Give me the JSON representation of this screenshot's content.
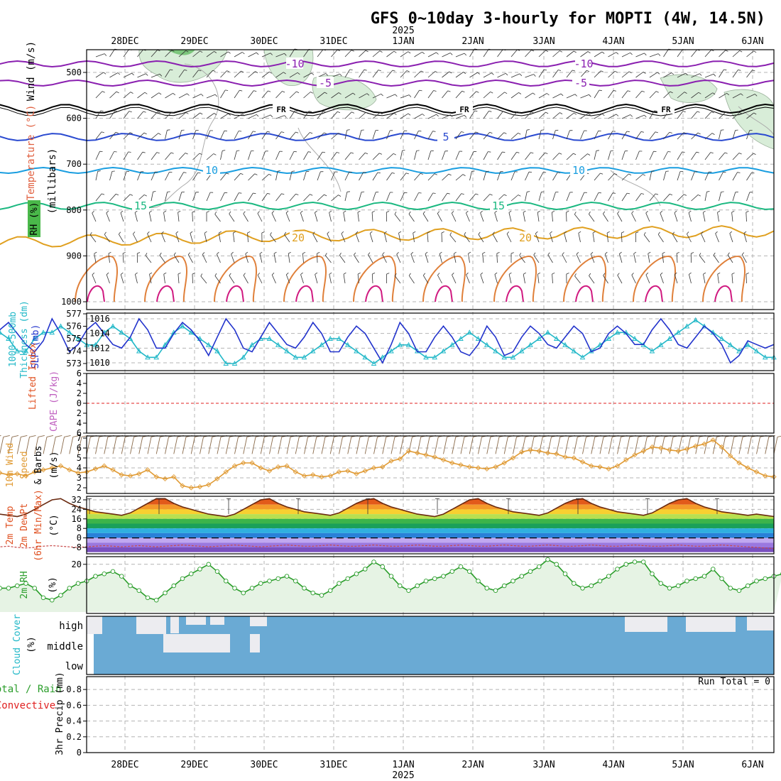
{
  "title": "GFS 0~10day 3-hourly for MOPTI (4W, 14.5N)",
  "year_label": "2025",
  "dates": [
    "28DEC",
    "29DEC",
    "30DEC",
    "31DEC",
    "1JAN",
    "2JAN",
    "3JAN",
    "4JAN",
    "5JAN",
    "6JAN"
  ],
  "panel_labels": {
    "upper_wind": "Wind (m/s)",
    "upper_temp": "Temperature (°C)",
    "upper_rh": "RH (%)",
    "upper_units": "(millibars)",
    "thick_a": "1000-500mb",
    "thick_b": "Thickness (dm)",
    "slp": "SLP (mb)",
    "li": "Lifted Index",
    "cape": "CAPE (J/kg)",
    "wind10_a": "10m Wind",
    "wind10_b": "Speed",
    "wind10_c": "& Barbs",
    "wind10_units": "(m/s)",
    "temp_a": "2m Temp",
    "temp_b": "2m DewPt",
    "temp_c": "(6hr Min/Max)",
    "temp_units": "(°C)",
    "rh2m": "2m RH",
    "rh2m_units": "(%)",
    "cloud": "Cloud Cover",
    "cloud_units": "(%)",
    "precip_a": "Total / Rain",
    "precip_b": "Convective",
    "precip_units": "3hr Precip (mm)",
    "cloud_levels": [
      "high",
      "middle",
      "low"
    ],
    "run_total": "Run Total = 0"
  },
  "colors": {
    "slp": "#2233cc",
    "thickness": "#22b8c8",
    "wind10": "#e09a33",
    "rh2m": "#2a9d2a",
    "cloud": "#6aaad4",
    "li": "#e02020",
    "temp_m10": "#8a1fb0",
    "temp_m5": "#8a1fb0",
    "temp_fr": "#000000",
    "temp_5": "#2a4ad0",
    "temp_10": "#1a9ee0",
    "temp_15": "#1ab880",
    "temp_20": "#e0a020"
  },
  "chart_data": [
    {
      "type": "line",
      "panel": "upper_air_temperature",
      "y_axis": "pressure (mb)",
      "yticks": [
        500,
        600,
        700,
        800,
        900,
        1000
      ],
      "isotherm_labels": [
        "-10",
        "-5",
        "FR",
        "5",
        "10",
        "15",
        "20"
      ]
    },
    {
      "type": "line",
      "panel": "slp_thickness",
      "yticks_thickness": [
        573,
        574,
        575,
        576,
        577
      ],
      "yticks_slp": [
        1010,
        1012,
        1014,
        1016
      ],
      "series": [
        {
          "name": "SLP (mb)",
          "values": [
            1014.5,
            1013.5,
            1012.0,
            1012.5,
            1014.5,
            1015.5,
            1014.0,
            1012.5,
            1011.5,
            1013.0,
            1016.0,
            1014.0,
            1011.5,
            1012.5,
            1014.5,
            1015.5,
            1014.0,
            1012.5,
            1012.0,
            1013.5,
            1016.0,
            1014.5,
            1012.0,
            1012.0,
            1014.0,
            1015.5,
            1014.5,
            1013.0,
            1011.0,
            1013.5,
            1016.0,
            1014.5,
            1012.0,
            1011.5,
            1013.5,
            1015.5,
            1014.0,
            1012.5,
            1012.0,
            1013.5,
            1015.5,
            1014.0,
            1011.5,
            1011.5,
            1013.5,
            1015.0,
            1014.0,
            1012.0,
            1010.0,
            1012.5,
            1015.5,
            1014.0,
            1011.5,
            1011.5,
            1013.5,
            1015.0,
            1013.5,
            1011.5,
            1011.0,
            1012.5,
            1015.0,
            1013.5,
            1011.0,
            1011.5,
            1013.5,
            1015.0,
            1014.0,
            1012.5,
            1012.0,
            1013.5,
            1015.0,
            1014.0,
            1011.5,
            1012.0,
            1014.0,
            1015.0,
            1014.0,
            1012.5,
            1012.5,
            1014.5,
            1016.0,
            1014.5,
            1012.5,
            1012.0,
            1013.5,
            1015.0,
            1014.0,
            1012.5,
            1010.0,
            1011.0,
            1013.0,
            1012.5,
            1012.0,
            1012.5
          ]
        },
        {
          "name": "1000-500mb Thickness (dm)",
          "values": [
            575.5,
            576.5,
            576.5,
            576.0,
            575.5,
            575.0,
            574.0,
            574.0,
            575.0,
            575.5,
            575.5,
            576.0,
            575.5,
            575.0,
            574.5,
            574.5,
            575.5,
            576.0,
            575.5,
            575.0,
            574.0,
            573.5,
            573.5,
            574.5,
            575.5,
            576.0,
            575.5,
            575.0,
            574.5,
            574.0,
            573.0,
            573.0,
            573.5,
            574.5,
            575.0,
            575.0,
            574.5,
            574.0,
            573.5,
            573.5,
            574.0,
            574.5,
            575.0,
            575.0,
            574.5,
            574.0,
            573.5,
            573.0,
            573.5,
            574.0,
            574.5,
            574.5,
            574.0,
            573.5,
            573.5,
            574.0,
            574.5,
            575.0,
            575.5,
            575.0,
            574.5,
            574.0,
            573.5,
            573.5,
            574.0,
            574.5,
            575.0,
            575.5,
            575.0,
            574.5,
            574.0,
            573.5,
            574.0,
            574.5,
            575.0,
            575.5,
            575.5,
            575.0,
            574.5,
            574.0,
            574.5,
            575.0,
            575.5,
            576.0,
            576.5,
            576.0,
            575.5,
            575.0,
            574.5,
            574.0,
            574.5,
            574.0,
            573.5,
            573.5
          ]
        }
      ]
    },
    {
      "type": "line",
      "panel": "lifted_index_cape",
      "yticks": [
        "6",
        "4",
        "2",
        "0",
        "2",
        "4",
        "6"
      ],
      "li_line_value": 0
    },
    {
      "type": "line",
      "panel": "10m_wind",
      "yticks": [
        2,
        3,
        4,
        5,
        6,
        7
      ],
      "series": [
        {
          "name": "10m Wind Speed (m/s)",
          "values": [
            3.8,
            4.3,
            4.5,
            4.3,
            3.5,
            3.3,
            3.4,
            3.2,
            3.6,
            3.8,
            4.0,
            4.2,
            3.8,
            3.5,
            3.6,
            3.9,
            4.2,
            3.8,
            3.3,
            3.2,
            3.4,
            3.8,
            3.1,
            2.9,
            3.1,
            2.2,
            2.0,
            2.1,
            2.3,
            2.9,
            3.6,
            4.2,
            4.5,
            4.5,
            4.0,
            3.7,
            4.1,
            4.2,
            3.6,
            3.2,
            3.3,
            3.1,
            3.2,
            3.6,
            3.7,
            3.4,
            3.7,
            4.0,
            4.1,
            4.7,
            4.9,
            5.7,
            5.5,
            5.3,
            5.1,
            4.8,
            4.5,
            4.3,
            4.1,
            4.0,
            3.9,
            4.1,
            4.5,
            5.0,
            5.6,
            5.8,
            5.7,
            5.5,
            5.4,
            5.1,
            5.0,
            4.6,
            4.2,
            4.1,
            3.9,
            4.2,
            4.8,
            5.3,
            5.7,
            6.1,
            6.0,
            5.8,
            5.7,
            5.9,
            6.2,
            6.4,
            6.8,
            6.1,
            5.2,
            4.5,
            4.0,
            3.6,
            3.2,
            3.1
          ]
        }
      ]
    },
    {
      "type": "area",
      "panel": "2m_temperature",
      "yticks": [
        -8,
        0,
        8,
        16,
        24,
        32
      ],
      "series": [
        {
          "name": "2m Temp (°C)",
          "values": [
            24,
            23,
            22,
            21,
            20,
            19,
            18,
            20,
            24,
            28,
            32,
            33,
            29,
            26,
            24,
            22,
            21,
            20,
            19,
            21,
            25,
            29,
            33,
            33,
            29,
            26,
            24,
            22,
            20,
            19,
            18,
            20,
            24,
            28,
            32,
            33,
            29,
            26,
            24,
            22,
            21,
            20,
            19,
            21,
            25,
            29,
            32,
            33,
            29,
            26,
            24,
            22,
            20,
            19,
            18,
            20,
            24,
            28,
            32,
            33,
            29,
            26,
            24,
            22,
            21,
            20,
            19,
            21,
            25,
            29,
            32,
            33,
            29,
            26,
            24,
            22,
            21,
            20,
            19,
            21,
            25,
            29,
            32,
            33,
            29,
            26,
            24,
            22,
            21,
            20,
            19,
            20,
            19,
            18
          ]
        },
        {
          "name": "2m DewPt (°C)",
          "values": [
            -7,
            -7.5,
            -8,
            -8,
            -7.5,
            -7,
            -8,
            -8.5,
            -8,
            -7,
            -6.5,
            -7,
            -7.5,
            -8,
            -7.5,
            -7,
            -6.5,
            -7,
            -7.5,
            -7,
            -6.5,
            -7,
            -7.5,
            -7,
            -6.5,
            -6,
            -6.5,
            -7,
            -7.5,
            -7,
            -6.5,
            -6,
            -6.5,
            -7,
            -7.5,
            -7,
            -6.5,
            -6,
            -6.5,
            -7,
            -7,
            -6.5,
            -6,
            -6.5,
            -7,
            -7,
            -6.5,
            -6,
            -6.5,
            -7,
            -7,
            -6.5,
            -6,
            -6.5,
            -7,
            -7,
            -6.5,
            -6,
            -6.5,
            -7,
            -7,
            -6.5,
            -6,
            -6.5,
            -7,
            -7,
            -6.5,
            -6,
            -6.5,
            -7,
            -7,
            -6.5,
            -6,
            -6.5,
            -7,
            -7,
            -6.5,
            -6,
            -6.5,
            -7,
            -7,
            -6.5,
            -6,
            -6.5,
            -7,
            -7,
            -6.5,
            -6,
            -6.5,
            -7,
            -7.5,
            -8,
            -8.5,
            -9
          ]
        }
      ]
    },
    {
      "type": "area",
      "panel": "2m_rh",
      "yticks": [
        20
      ],
      "series": [
        {
          "name": "2m RH (%)",
          "values": [
            6,
            5,
            8,
            9,
            10,
            10,
            11,
            12,
            10,
            6,
            5,
            7,
            10,
            12,
            13,
            15,
            16,
            17,
            15,
            11,
            9,
            6,
            5,
            8,
            11,
            14,
            16,
            18,
            20,
            17,
            13,
            10,
            8,
            10,
            12,
            13,
            14,
            15,
            13,
            10,
            8,
            7,
            9,
            12,
            14,
            16,
            18,
            21,
            19,
            15,
            11,
            9,
            11,
            13,
            14,
            15,
            17,
            19,
            17,
            13,
            10,
            9,
            11,
            13,
            15,
            17,
            19,
            22,
            20,
            16,
            12,
            10,
            11,
            13,
            15,
            18,
            20,
            21,
            21,
            16,
            12,
            10,
            11,
            13,
            14,
            15,
            18,
            14,
            10,
            9,
            11,
            13,
            14,
            15,
            16
          ]
        }
      ]
    },
    {
      "type": "bar",
      "panel": "cloud_cover",
      "series": [
        {
          "name": "high",
          "values": [
            0,
            0,
            0,
            0,
            0,
            0,
            0,
            0,
            0,
            0,
            0,
            0,
            0,
            0,
            0,
            0,
            0,
            0,
            0,
            0,
            0,
            0,
            0,
            0,
            0,
            0,
            0,
            0,
            0,
            0,
            0,
            0,
            0,
            0,
            0,
            0,
            0,
            0,
            0,
            0,
            0,
            0,
            0,
            0,
            0,
            0,
            0,
            0,
            0,
            0,
            0,
            0,
            0,
            0,
            0,
            0,
            0,
            0,
            0,
            0,
            0,
            0,
            0,
            0,
            0,
            0,
            0,
            0,
            0,
            0,
            0,
            0,
            0,
            0,
            0,
            0,
            0,
            0,
            0,
            0,
            0,
            0,
            0,
            0,
            0,
            0,
            0,
            0,
            0,
            0,
            0,
            0,
            0,
            0
          ]
        },
        {
          "name": "middle",
          "values": [
            0,
            0,
            0,
            0,
            0,
            0,
            0,
            0,
            0,
            0,
            0,
            0,
            0,
            0,
            0,
            0,
            0,
            0,
            0,
            0,
            0,
            0,
            0,
            0,
            0,
            0,
            0,
            0,
            0,
            0,
            0,
            0,
            0,
            0,
            0,
            0,
            0,
            0,
            0,
            0,
            0,
            0,
            0,
            0,
            0,
            0,
            0,
            0,
            0,
            0,
            0,
            0,
            0,
            0,
            0,
            0,
            0,
            0,
            0,
            0,
            0,
            0,
            0,
            0,
            0,
            0,
            0,
            0,
            0,
            0,
            0,
            0,
            0,
            0,
            0,
            0,
            0,
            0,
            0,
            0,
            0,
            0,
            0,
            0,
            0,
            0,
            0,
            0,
            0,
            0,
            0,
            0,
            0,
            0
          ]
        }
      ]
    },
    {
      "type": "bar",
      "panel": "precip",
      "yticks": [
        "0",
        "0.2",
        "0.4",
        "0.6",
        "0.8"
      ],
      "series": [
        {
          "name": "3hr Precip (mm)",
          "values": [
            0,
            0,
            0,
            0,
            0,
            0,
            0,
            0,
            0,
            0,
            0,
            0,
            0,
            0,
            0,
            0,
            0,
            0,
            0,
            0,
            0,
            0,
            0,
            0,
            0,
            0,
            0,
            0,
            0,
            0,
            0,
            0,
            0,
            0,
            0,
            0,
            0,
            0,
            0,
            0,
            0,
            0,
            0,
            0,
            0,
            0,
            0,
            0,
            0,
            0,
            0,
            0,
            0,
            0,
            0,
            0,
            0,
            0,
            0,
            0,
            0,
            0,
            0,
            0,
            0,
            0,
            0,
            0,
            0,
            0,
            0,
            0,
            0,
            0,
            0,
            0,
            0,
            0,
            0,
            0,
            0,
            0,
            0,
            0,
            0,
            0,
            0,
            0,
            0,
            0,
            0,
            0,
            0,
            0
          ]
        }
      ]
    }
  ]
}
